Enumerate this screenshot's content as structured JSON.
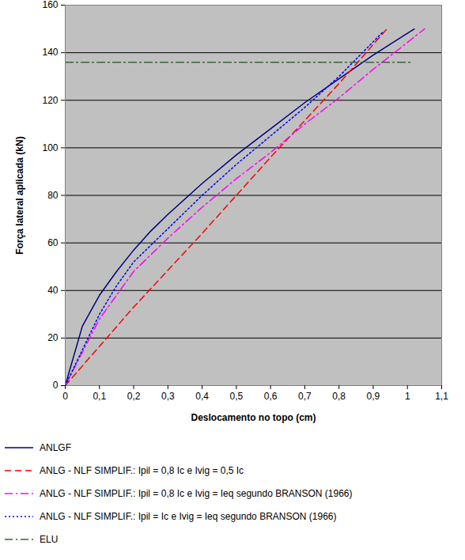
{
  "chart_data": {
    "type": "line",
    "x_label": "Deslocamento no topo (cm)",
    "y_label": "Força lateral aplicada (kN)",
    "xlim": [
      0,
      1.1
    ],
    "ylim": [
      0,
      160
    ],
    "xticks": [
      0,
      {
        "value": 0.1,
        "label": "0,1"
      },
      {
        "value": 0.2,
        "label": "0,2"
      },
      {
        "value": 0.3,
        "label": "0,3"
      },
      {
        "value": 0.4,
        "label": "0,4"
      },
      {
        "value": 0.5,
        "label": "0,5"
      },
      {
        "value": 0.6,
        "label": "0,6"
      },
      {
        "value": 0.7,
        "label": "0,7"
      },
      {
        "value": 0.8,
        "label": "0,8"
      },
      {
        "value": 0.9,
        "label": "0,9"
      },
      1,
      {
        "value": 1.1,
        "label": "1,1"
      }
    ],
    "yticks": [
      0,
      20,
      40,
      60,
      80,
      100,
      120,
      140,
      160
    ],
    "grid": true,
    "legend": "bottom",
    "series": [
      {
        "name": "ANLGF",
        "color": "#000080",
        "line_style": "solid",
        "x": [
          0,
          0.05,
          0.1,
          0.15,
          0.2,
          0.25,
          0.3,
          0.4,
          0.5,
          0.6,
          0.7,
          0.8,
          0.9,
          1.02
        ],
        "values": [
          0,
          25,
          38,
          48,
          57,
          65,
          72,
          85,
          97,
          108,
          119,
          129,
          139,
          150
        ]
      },
      {
        "name": "ANLG - NLF SIMPLIF.: Ipil = 0,8 Ic e Ivig = 0,5 Ic",
        "color": "#ff0000",
        "line_style": "dashed",
        "x": [
          0,
          0.2,
          0.4,
          0.6,
          0.8,
          0.94
        ],
        "values": [
          0,
          33,
          64,
          96,
          127,
          150
        ]
      },
      {
        "name": "ANLG - NLF SIMPLIF.: Ipil = 0,8 Ic e Ivig = Ieq segundo BRANSON (1966)",
        "color": "#ff00ff",
        "line_style": "dashdot",
        "x": [
          0,
          0.1,
          0.2,
          0.3,
          0.4,
          0.5,
          0.6,
          0.7,
          0.8,
          0.9,
          1.05
        ],
        "values": [
          0,
          28,
          48,
          62,
          75,
          87,
          98,
          110,
          121,
          133,
          150
        ]
      },
      {
        "name": "ANLG - NLF SIMPLIF.: Ipil = Ic e Ivig = Ieq segundo BRANSON (1966)",
        "color": "#0000ff",
        "line_style": "dotted",
        "x": [
          0,
          0.1,
          0.15,
          0.2,
          0.3,
          0.4,
          0.5,
          0.6,
          0.7,
          0.8,
          0.93
        ],
        "values": [
          0,
          30,
          42,
          52,
          66,
          80,
          93,
          105,
          117,
          130,
          149
        ]
      },
      {
        "name": "ELU",
        "color": "#336633",
        "line_style": "dashdot",
        "x": [
          0,
          1.01
        ],
        "values": [
          136,
          136
        ]
      }
    ]
  }
}
